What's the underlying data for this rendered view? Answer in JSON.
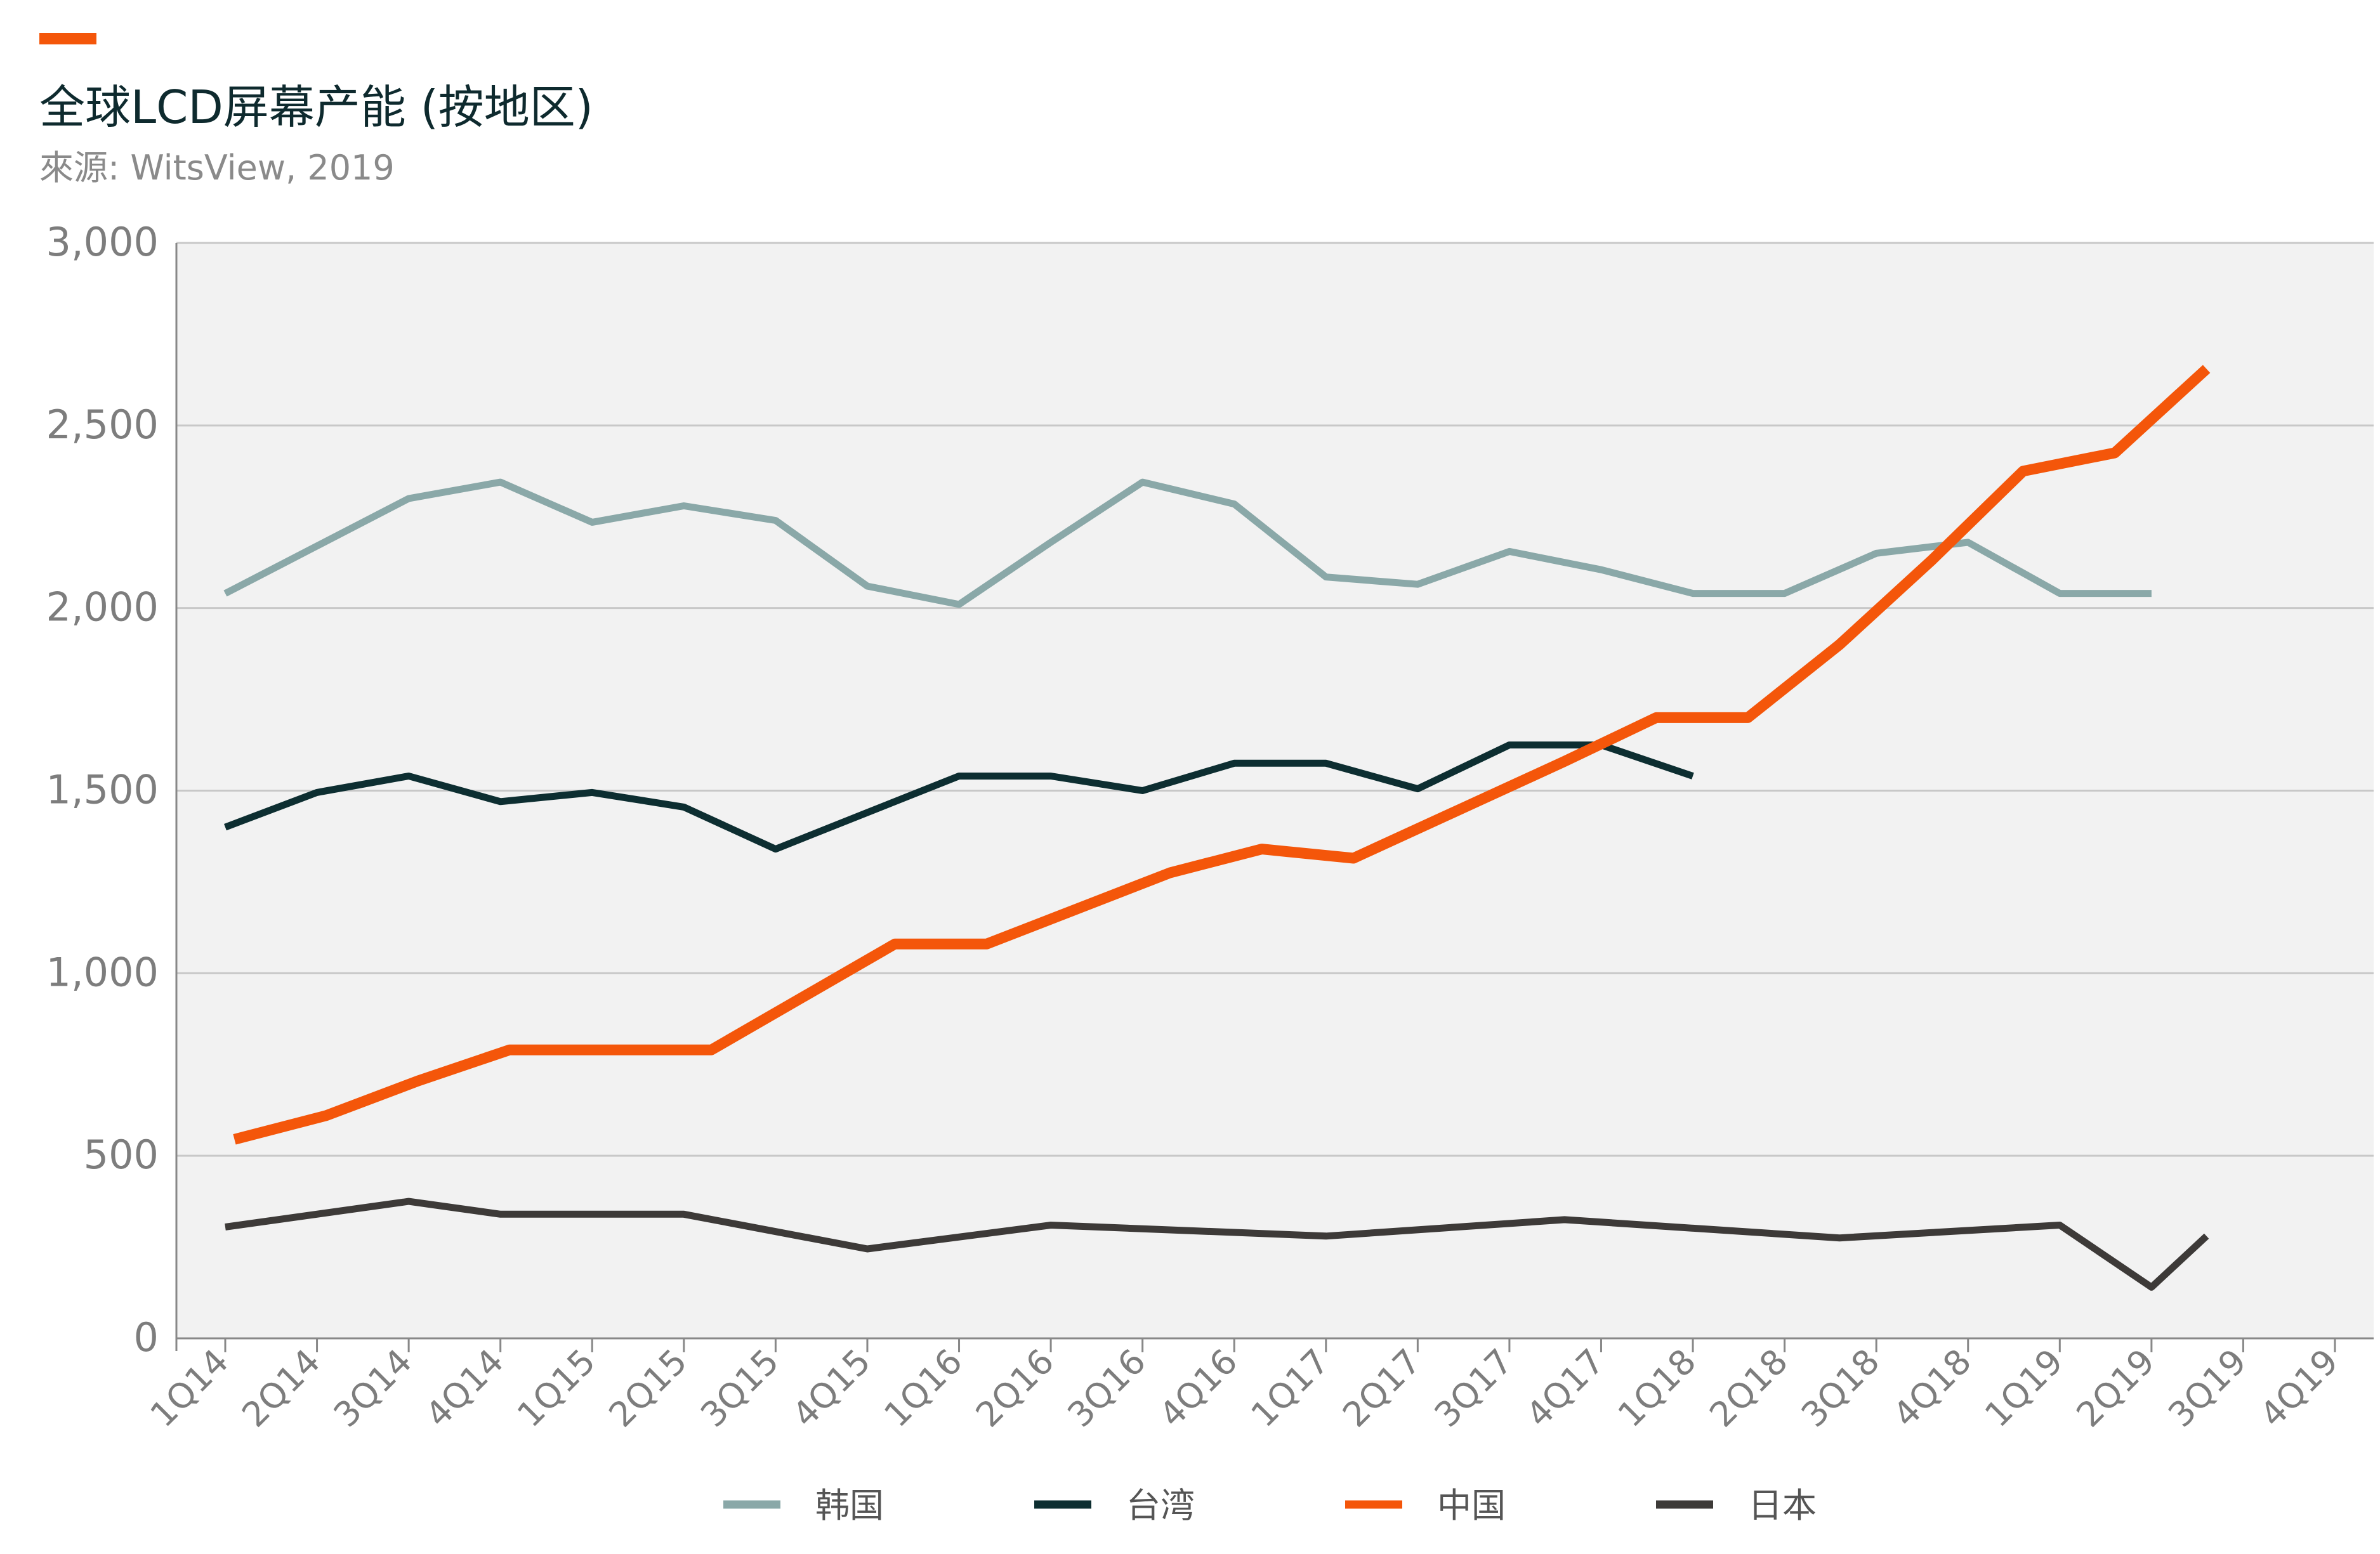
{
  "header": {
    "title": "全球LCD屏幕产能 (按地区)",
    "source": "來源: WitsView, 2019"
  },
  "colors": {
    "accent": "#f4560a",
    "plot_bg": "#f2f2f2",
    "grid": "#c8c8c8"
  },
  "chart_data": {
    "type": "line",
    "title": "全球LCD屏幕产能 (按地区)",
    "xlabel": "",
    "ylabel": "",
    "ylim": [
      0,
      3000
    ],
    "yticks": [
      0,
      500,
      1000,
      1500,
      2000,
      2500,
      3000
    ],
    "ytick_labels": [
      "0",
      "500",
      "1,000",
      "1,500",
      "2,000",
      "2,500",
      "3,000"
    ],
    "categories": [
      "1Q14",
      "2Q14",
      "3Q14",
      "4Q14",
      "1Q15",
      "2Q15",
      "3Q15",
      "4Q15",
      "1Q16",
      "2Q16",
      "3Q16",
      "4Q16",
      "1Q17",
      "2Q17",
      "3Q17",
      "4Q17",
      "1Q18",
      "2Q18",
      "3Q18",
      "4Q18",
      "1Q19",
      "2Q19",
      "3Q19",
      "4Q19"
    ],
    "grid": true,
    "legend_position": "bottom",
    "series": [
      {
        "name": "韩国",
        "color": "#8aa8a8",
        "points": [
          [
            0,
            2040
          ],
          [
            1,
            2170
          ],
          [
            2,
            2300
          ],
          [
            3,
            2345
          ],
          [
            4,
            2235
          ],
          [
            5,
            2280
          ],
          [
            6,
            2240
          ],
          [
            7,
            2060
          ],
          [
            8,
            2010
          ],
          [
            9,
            2180
          ],
          [
            10,
            2345
          ],
          [
            11,
            2285
          ],
          [
            12,
            2085
          ],
          [
            13,
            2065
          ],
          [
            14,
            2155
          ],
          [
            15,
            2105
          ],
          [
            16,
            2040
          ],
          [
            17,
            2040
          ],
          [
            18,
            2150
          ],
          [
            19,
            2180
          ],
          [
            20,
            2040
          ],
          [
            21,
            2040
          ]
        ]
      },
      {
        "name": "台湾",
        "color": "#0d2e31",
        "points": [
          [
            0,
            1400
          ],
          [
            1,
            1495
          ],
          [
            2,
            1540
          ],
          [
            3,
            1470
          ],
          [
            4,
            1495
          ],
          [
            5,
            1455
          ],
          [
            6,
            1340
          ],
          [
            7,
            1440
          ],
          [
            8,
            1540
          ],
          [
            9,
            1540
          ],
          [
            10,
            1500
          ],
          [
            11,
            1575
          ],
          [
            12,
            1575
          ],
          [
            13,
            1505
          ],
          [
            14,
            1625
          ],
          [
            15,
            1625
          ],
          [
            16,
            1540
          ]
        ]
      },
      {
        "name": "中国",
        "color": "#f4560a",
        "points": [
          [
            0.1,
            545
          ],
          [
            1.1,
            610
          ],
          [
            2.1,
            705
          ],
          [
            3.1,
            790
          ],
          [
            4.1,
            790
          ],
          [
            5.3,
            790
          ],
          [
            7.3,
            1080
          ],
          [
            8.3,
            1080
          ],
          [
            10.3,
            1275
          ],
          [
            11.3,
            1340
          ],
          [
            12.3,
            1315
          ],
          [
            14.6,
            1580
          ],
          [
            15.6,
            1700
          ],
          [
            16.6,
            1700
          ],
          [
            17.6,
            1900
          ],
          [
            18.6,
            2130
          ],
          [
            19.6,
            2375
          ],
          [
            20.6,
            2425
          ],
          [
            21.6,
            2655
          ]
        ]
      },
      {
        "name": "日本",
        "color": "#3d3a38",
        "points": [
          [
            0,
            305
          ],
          [
            2,
            375
          ],
          [
            3,
            340
          ],
          [
            4,
            340
          ],
          [
            5,
            340
          ],
          [
            7,
            245
          ],
          [
            9,
            310
          ],
          [
            12,
            280
          ],
          [
            14.6,
            325
          ],
          [
            17.6,
            275
          ],
          [
            20,
            310
          ],
          [
            21,
            140
          ],
          [
            21.6,
            280
          ]
        ]
      }
    ]
  }
}
